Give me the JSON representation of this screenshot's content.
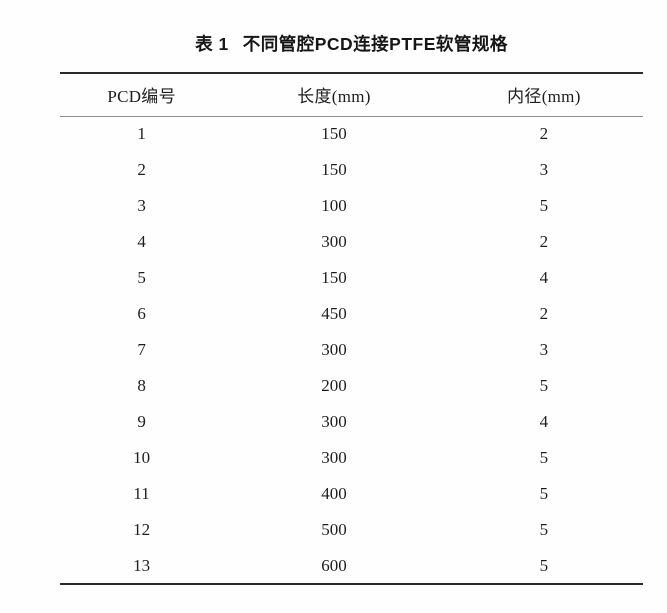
{
  "page": {
    "background": "#fefefe",
    "text_color": "#1e1e1e",
    "thick_rule_color": "#2a2a2a",
    "thin_rule_color": "#8e8e8e"
  },
  "table": {
    "caption_label": "表 1",
    "caption_text": "不同管腔PCD连接PTFE软管规格",
    "headers": [
      "PCD编号",
      "长度(mm)",
      "内径(mm)"
    ],
    "rows": [
      [
        "1",
        "150",
        "2"
      ],
      [
        "2",
        "150",
        "3"
      ],
      [
        "3",
        "100",
        "5"
      ],
      [
        "4",
        "300",
        "2"
      ],
      [
        "5",
        "150",
        "4"
      ],
      [
        "6",
        "450",
        "2"
      ],
      [
        "7",
        "300",
        "3"
      ],
      [
        "8",
        "200",
        "5"
      ],
      [
        "9",
        "300",
        "4"
      ],
      [
        "10",
        "300",
        "5"
      ],
      [
        "11",
        "400",
        "5"
      ],
      [
        "12",
        "500",
        "5"
      ],
      [
        "13",
        "600",
        "5"
      ]
    ]
  },
  "chart_data": {
    "type": "table",
    "title": "表 1 不同管腔PCD连接PTFE软管规格",
    "columns": [
      "PCD编号",
      "长度(mm)",
      "内径(mm)"
    ],
    "records": [
      {
        "pcd": 1,
        "length_mm": 150,
        "inner_diameter_mm": 2
      },
      {
        "pcd": 2,
        "length_mm": 150,
        "inner_diameter_mm": 3
      },
      {
        "pcd": 3,
        "length_mm": 100,
        "inner_diameter_mm": 5
      },
      {
        "pcd": 4,
        "length_mm": 300,
        "inner_diameter_mm": 2
      },
      {
        "pcd": 5,
        "length_mm": 150,
        "inner_diameter_mm": 4
      },
      {
        "pcd": 6,
        "length_mm": 450,
        "inner_diameter_mm": 2
      },
      {
        "pcd": 7,
        "length_mm": 300,
        "inner_diameter_mm": 3
      },
      {
        "pcd": 8,
        "length_mm": 200,
        "inner_diameter_mm": 5
      },
      {
        "pcd": 9,
        "length_mm": 300,
        "inner_diameter_mm": 4
      },
      {
        "pcd": 10,
        "length_mm": 300,
        "inner_diameter_mm": 5
      },
      {
        "pcd": 11,
        "length_mm": 400,
        "inner_diameter_mm": 5
      },
      {
        "pcd": 12,
        "length_mm": 500,
        "inner_diameter_mm": 5
      },
      {
        "pcd": 13,
        "length_mm": 600,
        "inner_diameter_mm": 5
      }
    ]
  }
}
